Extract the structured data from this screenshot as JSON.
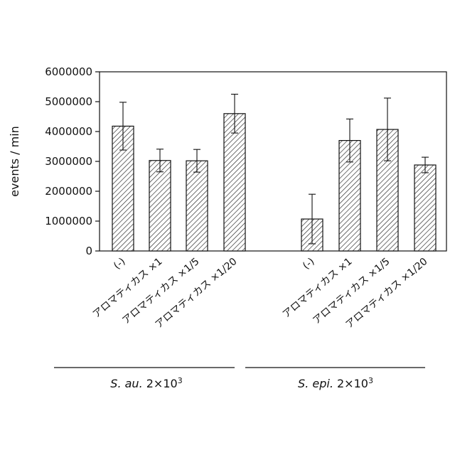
{
  "chart_data": {
    "type": "bar",
    "title": "",
    "xlabel": "",
    "ylabel": "events / min",
    "ylim": [
      0,
      6000000
    ],
    "yticks": [
      "0",
      "1000000",
      "2000000",
      "3000000",
      "4000000",
      "5000000",
      "6000000"
    ],
    "grid": false,
    "legend": "none",
    "bar_pattern": "diagonal-hatch",
    "groups": [
      {
        "label_italic": "S. au.",
        "label_rest": " 2×10",
        "label_sup": "3",
        "categories": [
          "(-)",
          "アロマティカス ×1",
          "アロマティカス ×1/5",
          "アロマティカス ×1/20"
        ],
        "values": [
          4180000,
          3030000,
          3020000,
          4600000
        ],
        "errors": [
          800000,
          380000,
          380000,
          650000
        ]
      },
      {
        "label_italic": "S. epi.",
        "label_rest": " 2×10",
        "label_sup": "3",
        "categories": [
          "(-)",
          "アロマティカス ×1",
          "アロマティカス ×1/5",
          "アロマティカス ×1/20"
        ],
        "values": [
          1070000,
          3700000,
          4070000,
          2880000
        ],
        "errors": [
          830000,
          720000,
          1050000,
          260000
        ]
      }
    ]
  }
}
